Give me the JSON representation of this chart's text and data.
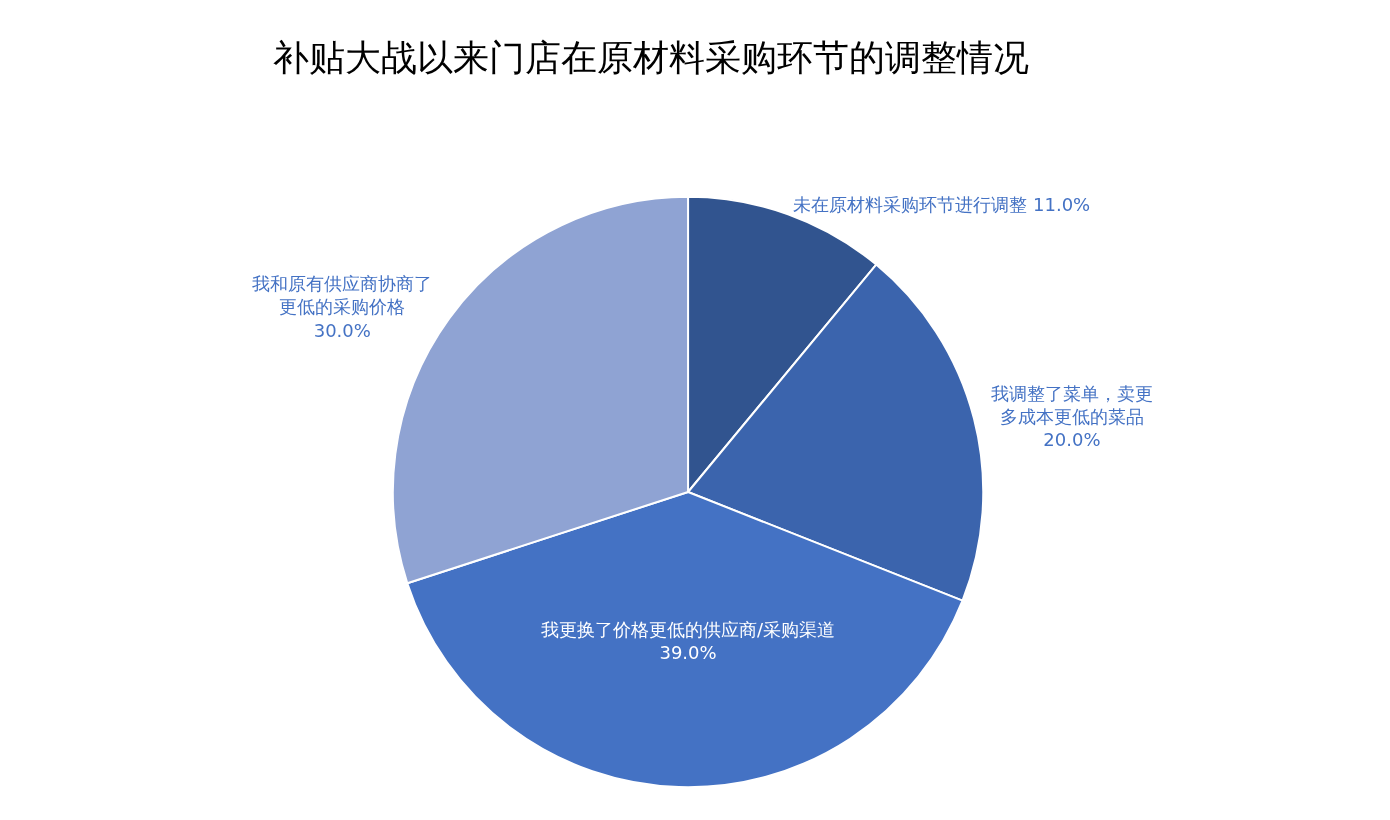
{
  "chart_data": {
    "type": "pie",
    "title": "补贴大战以来门店在原材料采购环节的调整情况",
    "categories": [
      "未在原材料采购环节进行调整",
      "我调整了菜单，卖更多成本更低的菜品",
      "我更换了价格更低的供应商/采购渠道",
      "我和原有供应商协商了更低的采购价格"
    ],
    "values": [
      11,
      20,
      39,
      30
    ],
    "value_labels": [
      "11.0%",
      "20.0%",
      "39.0%",
      "30.0%"
    ],
    "colors": [
      "#31548f",
      "#3b64ad",
      "#4472c4",
      "#8fa3d3"
    ],
    "legend": false
  }
}
